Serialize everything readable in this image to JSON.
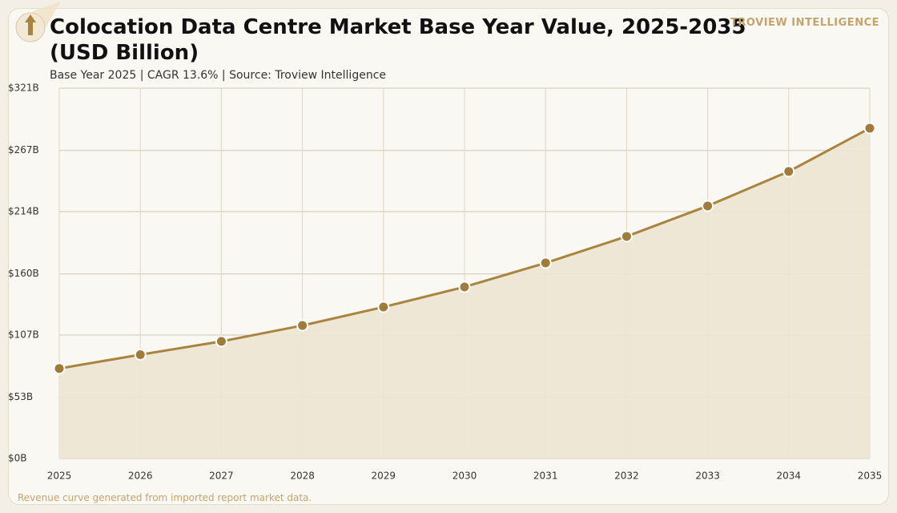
{
  "title": "Colocation Data Centre Market Base Year Value, 2025-2035 (USD Billion)",
  "subtitle": "Base Year 2025 | CAGR 13.6% | Source: Troview Intelligence",
  "brand": "TROVIEW INTELLIGENCE",
  "note": "Revenue curve generated from imported report market data.",
  "chart_data": {
    "type": "area",
    "x": [
      2025,
      2026,
      2027,
      2028,
      2029,
      2030,
      2031,
      2032,
      2033,
      2034,
      2035
    ],
    "values": [
      78,
      90,
      101.5,
      115.3,
      131.3,
      148.7,
      169.5,
      192.5,
      218.9,
      248.8,
      286.3
    ],
    "color": "#a8843f",
    "fill": "#ede4d3",
    "marker_color": "#a07c3a",
    "xlim": [
      2025,
      2035
    ],
    "xticks": [
      2025,
      2026,
      2027,
      2028,
      2029,
      2030,
      2031,
      2032,
      2033,
      2034,
      2035
    ],
    "ylim": [
      0,
      321
    ],
    "yticks": [
      {
        "value": 0,
        "label": "$0B"
      },
      {
        "value": 53,
        "label": "$53B"
      },
      {
        "value": 107,
        "label": "$107B"
      },
      {
        "value": 160,
        "label": "$160B"
      },
      {
        "value": 214,
        "label": "$214B"
      },
      {
        "value": 267,
        "label": "$267B"
      },
      {
        "value": 321,
        "label": "$321B"
      }
    ],
    "grid": true
  }
}
